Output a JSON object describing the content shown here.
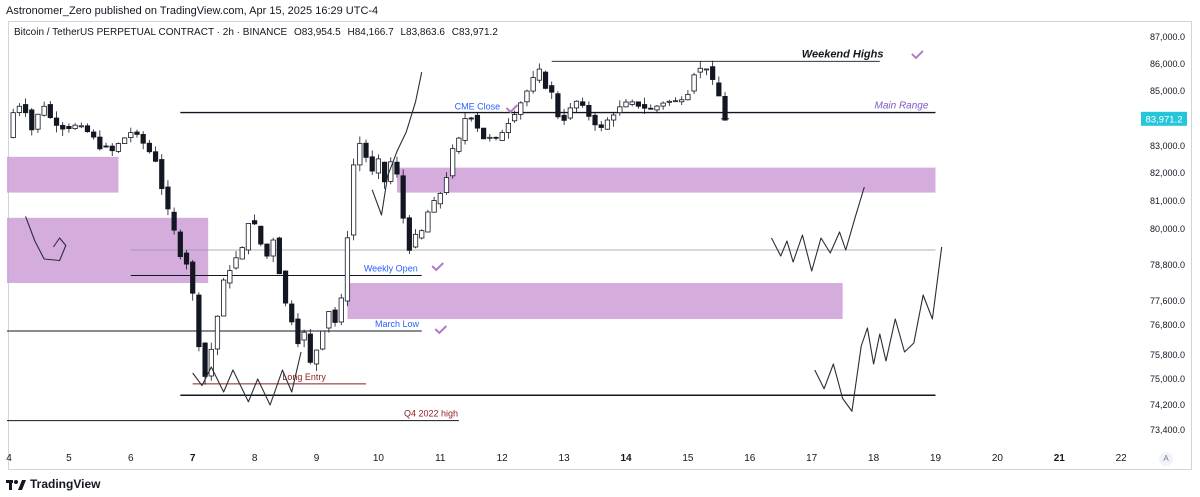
{
  "header": {
    "publisher": "Astronomer_Zero published on TradingView.com, Apr 15, 2025 16:29 UTC-4",
    "symbol": "Bitcoin / TetherUS PERPETUAL CONTRACT · 2h · BINANCE",
    "open": "O83,954.5",
    "high": "H84,166.7",
    "low": "L83,863.6",
    "close": "C83,971.2"
  },
  "footer": {
    "brand": "TradingView",
    "scale_button": "A"
  },
  "colors": {
    "zone": "#ce9fd6",
    "candle": "#131722",
    "price_label_bg": "#26c6da",
    "annotation_blue": "#2962ff",
    "annotation_red": "#8b1e1e",
    "annotation_purple": "#7e57c2",
    "check": "#b07cc6"
  },
  "chart_data": {
    "type": "candlestick",
    "y_axis": {
      "labels": [
        "87,000.0",
        "86,000.0",
        "85,000.0",
        "84,000.0",
        "83,000.0",
        "82,000.0",
        "81,000.0",
        "80,000.0",
        "78,800.0",
        "77,600.0",
        "76,800.0",
        "75,800.0",
        "75,000.0",
        "74,200.0",
        "73,400.0"
      ],
      "current_price_label": "83,971.2"
    },
    "x_axis": {
      "labels": [
        {
          "text": "4",
          "x": 4
        },
        {
          "text": "5",
          "x": 5
        },
        {
          "text": "6",
          "x": 6
        },
        {
          "text": "7",
          "x": 7,
          "bold": true
        },
        {
          "text": "8",
          "x": 8
        },
        {
          "text": "9",
          "x": 9
        },
        {
          "text": "10",
          "x": 10
        },
        {
          "text": "11",
          "x": 11
        },
        {
          "text": "12",
          "x": 12
        },
        {
          "text": "13",
          "x": 13
        },
        {
          "text": "14",
          "x": 14,
          "bold": true
        },
        {
          "text": "15",
          "x": 15
        },
        {
          "text": "16",
          "x": 16
        },
        {
          "text": "17",
          "x": 17
        },
        {
          "text": "18",
          "x": 18
        },
        {
          "text": "19",
          "x": 19
        },
        {
          "text": "20",
          "x": 20
        },
        {
          "text": "21",
          "x": 21,
          "bold": true
        },
        {
          "text": "22",
          "x": 22
        }
      ]
    },
    "close_path": [
      [
        4.0,
        83300
      ],
      [
        4.1,
        84200
      ],
      [
        4.2,
        84500
      ],
      [
        4.3,
        84300
      ],
      [
        4.4,
        83600
      ],
      [
        4.5,
        84100
      ],
      [
        4.6,
        84500
      ],
      [
        4.7,
        84000
      ],
      [
        4.9,
        83700
      ],
      [
        5.1,
        83700
      ],
      [
        5.3,
        83500
      ],
      [
        5.5,
        83000
      ],
      [
        5.7,
        82800
      ],
      [
        5.9,
        83300
      ],
      [
        6.0,
        83500
      ],
      [
        6.2,
        83100
      ],
      [
        6.4,
        82500
      ],
      [
        6.5,
        81500
      ],
      [
        6.6,
        80600
      ],
      [
        6.7,
        79900
      ],
      [
        6.8,
        79200
      ],
      [
        6.9,
        78900
      ],
      [
        7.0,
        77800
      ],
      [
        7.1,
        76200
      ],
      [
        7.2,
        75100
      ],
      [
        7.3,
        76000
      ],
      [
        7.4,
        77100
      ],
      [
        7.5,
        78200
      ],
      [
        7.6,
        78700
      ],
      [
        7.7,
        79000
      ],
      [
        7.8,
        79300
      ],
      [
        7.9,
        80300
      ],
      [
        8.0,
        80100
      ],
      [
        8.1,
        79500
      ],
      [
        8.2,
        79100
      ],
      [
        8.3,
        79700
      ],
      [
        8.4,
        78600
      ],
      [
        8.5,
        77500
      ],
      [
        8.6,
        77000
      ],
      [
        8.7,
        76300
      ],
      [
        8.8,
        76500
      ],
      [
        8.9,
        75500
      ],
      [
        9.0,
        76000
      ],
      [
        9.1,
        76700
      ],
      [
        9.2,
        77300
      ],
      [
        9.3,
        76900
      ],
      [
        9.4,
        77600
      ],
      [
        9.5,
        79800
      ],
      [
        9.6,
        82300
      ],
      [
        9.7,
        83100
      ],
      [
        9.8,
        82600
      ],
      [
        9.9,
        82000
      ],
      [
        10.0,
        82400
      ],
      [
        10.1,
        81700
      ],
      [
        10.2,
        82400
      ],
      [
        10.3,
        81900
      ],
      [
        10.4,
        80400
      ],
      [
        10.5,
        79400
      ],
      [
        10.6,
        79700
      ],
      [
        10.7,
        79900
      ],
      [
        10.8,
        80600
      ],
      [
        10.9,
        80900
      ],
      [
        11.0,
        81300
      ],
      [
        11.1,
        81900
      ],
      [
        11.2,
        82800
      ],
      [
        11.3,
        83200
      ],
      [
        11.4,
        84000
      ],
      [
        11.5,
        84100
      ],
      [
        11.7,
        83300
      ],
      [
        11.9,
        83200
      ],
      [
        12.1,
        83900
      ],
      [
        12.3,
        84600
      ],
      [
        12.5,
        85400
      ],
      [
        12.6,
        85700
      ],
      [
        12.7,
        85200
      ],
      [
        12.8,
        84900
      ],
      [
        12.9,
        84100
      ],
      [
        13.0,
        84000
      ],
      [
        13.2,
        84600
      ],
      [
        13.4,
        84100
      ],
      [
        13.6,
        83600
      ],
      [
        13.8,
        84200
      ],
      [
        14.0,
        84500
      ],
      [
        14.2,
        84500
      ],
      [
        14.4,
        84300
      ],
      [
        14.6,
        84600
      ],
      [
        14.8,
        84600
      ],
      [
        15.0,
        85000
      ],
      [
        15.1,
        85700
      ],
      [
        15.2,
        85800
      ],
      [
        15.3,
        85900
      ],
      [
        15.4,
        85300
      ],
      [
        15.5,
        84800
      ],
      [
        15.6,
        83971.2
      ]
    ],
    "current_price": 83971.2,
    "horizontal_levels": [
      {
        "label": "Weekend Highs",
        "price": 86100,
        "x1": 12.8,
        "x2": 18.1,
        "color": "#131722",
        "label_color": "#131722"
      },
      {
        "label": "CME Close",
        "price": 84200,
        "x1": 6.8,
        "x2": 19.0,
        "color": "#131722",
        "label_color": "#2962ff"
      },
      {
        "label": "Main Range",
        "price": 84200,
        "x1": null,
        "x2": null,
        "color": null,
        "label_color": "#7e57c2"
      },
      {
        "label": "Weekly Open",
        "price": 78450,
        "x1": 6.0,
        "x2": 10.7,
        "color": "#131722",
        "label_color": "#2962ff"
      },
      {
        "label": "March Low",
        "price": 76600,
        "x1": 4.0,
        "x2": 10.7,
        "color": "#131722",
        "label_color": "#2962ff"
      },
      {
        "label": "Long Entry",
        "price": 74850,
        "x1": 7.0,
        "x2": 9.8,
        "color": "#8b1e1e",
        "label_color": "#8b1e1e"
      },
      {
        "label": "",
        "price": 74500,
        "x1": 6.8,
        "x2": 19.0,
        "color": "#131722",
        "label_color": null
      },
      {
        "label": "Q4 2022 high",
        "price": 73700,
        "x1": 4.0,
        "x2": 11.3,
        "color": "#131722",
        "label_color": "#8b1e1e"
      }
    ],
    "zones": [
      {
        "x1": 4.0,
        "x2": 5.8,
        "y_top": 82600,
        "y_bottom": 81300
      },
      {
        "x1": 4.0,
        "x2": 7.25,
        "y_top": 80400,
        "y_bottom": 78200
      },
      {
        "x1": 10.3,
        "x2": 19.0,
        "y_top": 82200,
        "y_bottom": 81300
      },
      {
        "x1": 9.5,
        "x2": 17.5,
        "y_top": 78200,
        "y_bottom": 77000
      }
    ],
    "grid": false
  }
}
